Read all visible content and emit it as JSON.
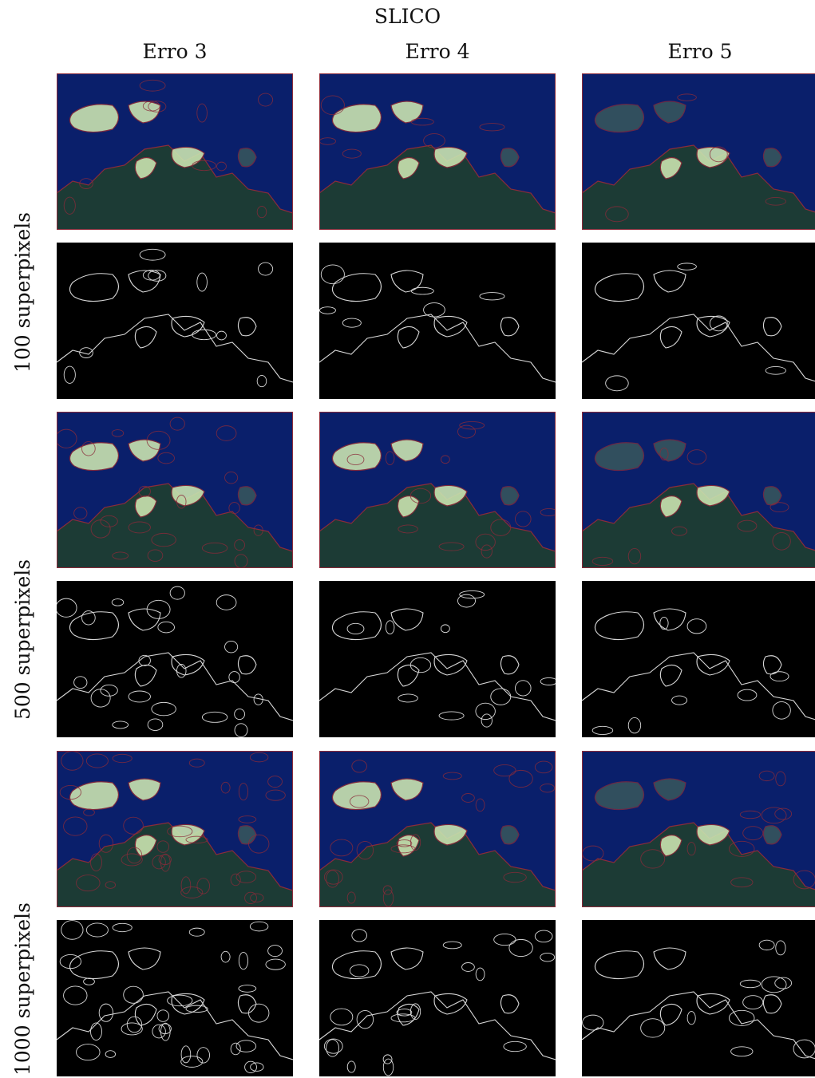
{
  "figure": {
    "title": "SLICO",
    "columns": [
      "Erro 3",
      "Erro 4",
      "Erro 5"
    ],
    "rows": [
      "100 superpixels",
      "500 superpixels",
      "1000 superpixels"
    ],
    "panel_kinds": [
      "overlay",
      "boundaries"
    ]
  },
  "colors": {
    "water": "#0a1f6b",
    "land": "#1c3b35",
    "segment_edge": "#8b2b3a",
    "boundary_line": "#d8d8d8",
    "boundary_bg": "#000000",
    "highlight": "#c9e3b0"
  }
}
